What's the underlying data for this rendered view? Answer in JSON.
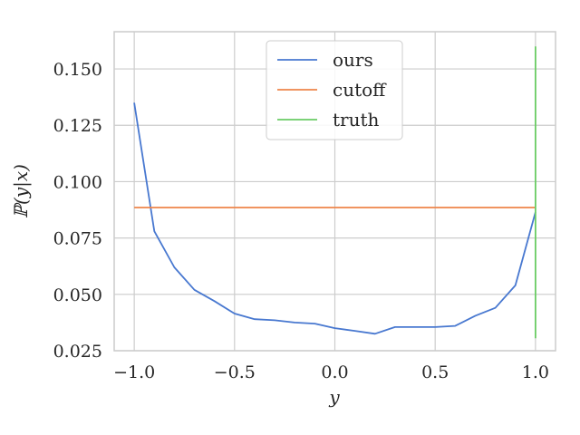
{
  "chart_data": {
    "type": "line",
    "title": "",
    "xlabel": "y",
    "ylabel": "ℙ(y|x)",
    "xlim": [
      -1.1,
      1.1
    ],
    "ylim": [
      0.025,
      0.1665
    ],
    "x_ticks": [
      -1.0,
      -0.5,
      0.0,
      0.5,
      1.0
    ],
    "x_tick_labels": [
      "−1.0",
      "−0.5",
      "0.0",
      "0.5",
      "1.0"
    ],
    "y_ticks": [
      0.025,
      0.05,
      0.075,
      0.1,
      0.125,
      0.15
    ],
    "y_tick_labels": [
      "0.025",
      "0.050",
      "0.075",
      "0.100",
      "0.125",
      "0.150"
    ],
    "grid": true,
    "legend_position": "top-center",
    "series": [
      {
        "name": "ours",
        "color": "#4878d0",
        "x": [
          -1.0,
          -0.9,
          -0.8,
          -0.7,
          -0.6,
          -0.5,
          -0.4,
          -0.3,
          -0.2,
          -0.1,
          0.0,
          0.1,
          0.2,
          0.3,
          0.4,
          0.5,
          0.6,
          0.7,
          0.8,
          0.9,
          1.0
        ],
        "y": [
          0.135,
          0.078,
          0.062,
          0.052,
          0.047,
          0.0415,
          0.039,
          0.0385,
          0.0375,
          0.037,
          0.035,
          0.0338,
          0.0325,
          0.0355,
          0.0355,
          0.0355,
          0.036,
          0.0405,
          0.044,
          0.054,
          0.0865
        ]
      },
      {
        "name": "cutoff",
        "color": "#ee854a",
        "x": [
          -1.0,
          1.0
        ],
        "y": [
          0.0885,
          0.0885
        ]
      },
      {
        "name": "truth",
        "color": "#6acc64",
        "x": [
          1.0,
          1.0
        ],
        "y": [
          0.0305,
          0.16
        ]
      }
    ]
  }
}
